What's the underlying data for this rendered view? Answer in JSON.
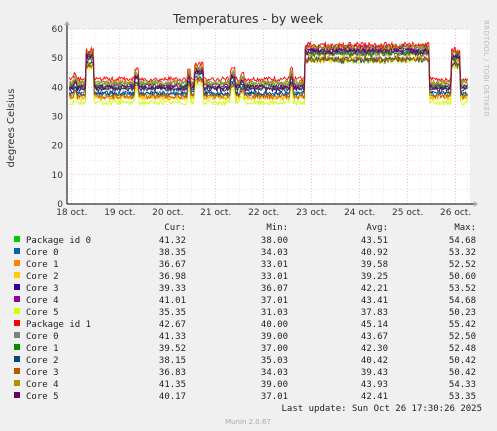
{
  "chart_data": {
    "type": "line",
    "title": "Temperatures - by week",
    "ylabel": "degrees Celsius",
    "ylim": [
      0,
      60
    ],
    "yticks": [
      0,
      10,
      20,
      30,
      40,
      50,
      60
    ],
    "xticks": [
      "18 oct.",
      "19 oct.",
      "20 oct.",
      "21 oct.",
      "22 oct.",
      "23 oct.",
      "24 oct.",
      "25 oct.",
      "26 oct."
    ],
    "xrange_days": [
      17.9,
      26.3
    ],
    "grid": true,
    "side_label": "RRDTOOL / TOBI OETIKER",
    "columns": [
      "Cur:",
      "Min:",
      "Avg:",
      "Max:"
    ],
    "series": [
      {
        "name": "Package id 0",
        "color": "#00cc00",
        "cur": "41.32",
        "min": "38.00",
        "avg": "43.51",
        "max": "54.68"
      },
      {
        "name": "Core 0",
        "color": "#0066b3",
        "cur": "38.35",
        "min": "34.03",
        "avg": "40.92",
        "max": "53.32"
      },
      {
        "name": "Core 1",
        "color": "#ff8000",
        "cur": "36.67",
        "min": "33.01",
        "avg": "39.58",
        "max": "52.52"
      },
      {
        "name": "Core 2",
        "color": "#ffcc00",
        "cur": "36.98",
        "min": "33.01",
        "avg": "39.25",
        "max": "50.60"
      },
      {
        "name": "Core 3",
        "color": "#330099",
        "cur": "39.33",
        "min": "36.07",
        "avg": "42.21",
        "max": "53.52"
      },
      {
        "name": "Core 4",
        "color": "#990099",
        "cur": "41.01",
        "min": "37.01",
        "avg": "43.41",
        "max": "54.68"
      },
      {
        "name": "Core 5",
        "color": "#ccff00",
        "cur": "35.35",
        "min": "31.03",
        "avg": "37.83",
        "max": "50.23"
      },
      {
        "name": "Package id 1",
        "color": "#ff0000",
        "cur": "42.67",
        "min": "40.00",
        "avg": "45.14",
        "max": "55.42"
      },
      {
        "name": "Core 0",
        "color": "#808080",
        "cur": "41.33",
        "min": "39.00",
        "avg": "43.67",
        "max": "52.50"
      },
      {
        "name": "Core 1",
        "color": "#008f00",
        "cur": "39.52",
        "min": "37.00",
        "avg": "42.30",
        "max": "52.48"
      },
      {
        "name": "Core 2",
        "color": "#00487d",
        "cur": "38.15",
        "min": "35.03",
        "avg": "40.42",
        "max": "50.42"
      },
      {
        "name": "Core 3",
        "color": "#b35a00",
        "cur": "36.83",
        "min": "34.03",
        "avg": "39.43",
        "max": "50.42"
      },
      {
        "name": "Core 4",
        "color": "#b38f00",
        "cur": "41.35",
        "min": "39.00",
        "avg": "43.93",
        "max": "54.33"
      },
      {
        "name": "Core 5",
        "color": "#6b006b",
        "cur": "40.17",
        "min": "37.01",
        "avg": "42.41",
        "max": "53.35"
      }
    ],
    "spikes": [
      [
        18.05,
        18.1,
        1
      ],
      [
        18.3,
        18.45,
        6
      ],
      [
        19.3,
        19.4,
        2
      ],
      [
        20.4,
        20.48,
        2
      ],
      [
        20.55,
        20.75,
        3
      ],
      [
        21.3,
        21.4,
        2
      ],
      [
        21.5,
        21.6,
        1
      ],
      [
        22.55,
        22.6,
        2
      ],
      [
        22.85,
        25.45,
        7
      ],
      [
        25.9,
        26.1,
        6
      ]
    ]
  },
  "footer": {
    "last_update": "Last update: Sun Oct 26 17:30:26 2025",
    "version": "Munin 2.0.67"
  }
}
